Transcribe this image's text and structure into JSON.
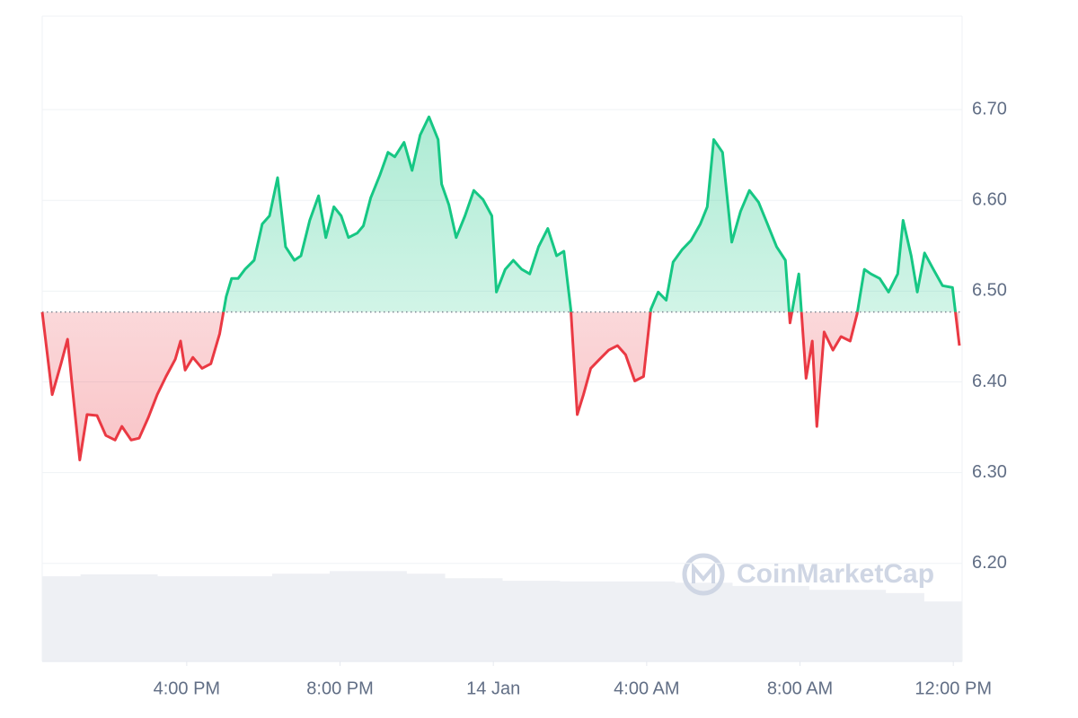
{
  "chart_data": {
    "type": "line",
    "x": [
      12.23,
      12.49,
      12.72,
      12.89,
      13.01,
      13.21,
      13.4,
      13.66,
      13.89,
      14.13,
      14.31,
      14.55,
      14.76,
      15.0,
      15.23,
      15.46,
      15.7,
      15.84,
      15.96,
      16.16,
      16.4,
      16.63,
      16.86,
      17.03,
      17.17,
      17.34,
      17.52,
      17.76,
      17.97,
      18.16,
      18.37,
      18.58,
      18.81,
      18.98,
      19.21,
      19.44,
      19.63,
      19.84,
      20.03,
      20.22,
      20.45,
      20.61,
      20.8,
      21.04,
      21.25,
      21.43,
      21.67,
      21.88,
      22.09,
      22.32,
      22.56,
      22.65,
      22.84,
      23.03,
      23.26,
      23.49,
      23.73,
      23.96,
      24.08,
      24.31,
      24.52,
      24.74,
      24.95,
      25.18,
      25.42,
      25.65,
      25.84,
      26.02,
      26.19,
      26.35,
      26.54,
      26.77,
      27.01,
      27.24,
      27.45,
      27.69,
      27.92,
      28.11,
      28.3,
      28.51,
      28.69,
      28.93,
      29.16,
      29.4,
      29.58,
      29.75,
      29.98,
      30.22,
      30.45,
      30.68,
      30.92,
      31.15,
      31.39,
      31.62,
      31.74,
      31.97,
      32.16,
      32.32,
      32.44,
      32.63,
      32.86,
      33.07,
      33.31,
      33.49,
      33.68,
      33.85,
      34.08,
      34.31,
      34.55,
      34.69,
      34.9,
      35.06,
      35.25,
      35.48,
      35.72,
      35.98,
      36.16
    ],
    "values": [
      6.477,
      6.386,
      6.42,
      6.447,
      6.396,
      6.314,
      6.364,
      6.363,
      6.341,
      6.336,
      6.351,
      6.336,
      6.338,
      6.361,
      6.386,
      6.406,
      6.425,
      6.445,
      6.413,
      6.427,
      6.415,
      6.42,
      6.453,
      6.494,
      6.514,
      6.514,
      6.524,
      6.534,
      6.574,
      6.583,
      6.625,
      6.549,
      6.534,
      6.539,
      6.578,
      6.605,
      6.559,
      6.593,
      6.583,
      6.559,
      6.564,
      6.572,
      6.603,
      6.628,
      6.653,
      6.648,
      6.664,
      6.633,
      6.672,
      6.692,
      6.667,
      6.618,
      6.595,
      6.559,
      6.583,
      6.611,
      6.601,
      6.583,
      6.499,
      6.524,
      6.534,
      6.524,
      6.519,
      6.549,
      6.569,
      6.539,
      6.544,
      6.48,
      6.364,
      6.386,
      6.415,
      6.425,
      6.435,
      6.44,
      6.43,
      6.401,
      6.406,
      6.48,
      6.499,
      6.49,
      6.532,
      6.546,
      6.556,
      6.574,
      6.593,
      6.667,
      6.653,
      6.554,
      6.588,
      6.611,
      6.598,
      6.574,
      6.549,
      6.534,
      6.465,
      6.519,
      6.404,
      6.445,
      6.351,
      6.455,
      6.435,
      6.45,
      6.445,
      6.475,
      6.524,
      6.519,
      6.514,
      6.499,
      6.519,
      6.578,
      6.539,
      6.499,
      6.542,
      6.524,
      6.506,
      6.504,
      6.44
    ],
    "reference_line": 6.477,
    "up_color": "#16c784",
    "down_color": "#ea3943",
    "xlim": [
      12.23,
      36.23
    ],
    "xticks": [
      {
        "value": 16,
        "label": "4:00 PM"
      },
      {
        "value": 20,
        "label": "8:00 PM"
      },
      {
        "value": 24,
        "label": "14 Jan"
      },
      {
        "value": 28,
        "label": "4:00 AM"
      },
      {
        "value": 32,
        "label": "8:00 AM"
      },
      {
        "value": 36,
        "label": "12:00 PM"
      }
    ],
    "ylim": [
      6.092,
      6.803
    ],
    "yticks": [
      {
        "value": 6.2,
        "label": "6.20"
      },
      {
        "value": 6.3,
        "label": "6.30"
      },
      {
        "value": 6.4,
        "label": "6.40"
      },
      {
        "value": 6.5,
        "label": "6.50"
      },
      {
        "value": 6.6,
        "label": "6.60"
      },
      {
        "value": 6.7,
        "label": "6.70"
      }
    ],
    "grid": true,
    "volume": {
      "color": "#eef0f4",
      "y2lim": [
        0,
        100
      ],
      "values": [
        13.2,
        13.2,
        13.5,
        13.5,
        13.5,
        13.5,
        13.2,
        13.2,
        13.2,
        13.2,
        13.2,
        13.2,
        13.6,
        13.6,
        13.6,
        14.0,
        14.0,
        14.0,
        14.0,
        13.6,
        13.6,
        12.9,
        12.9,
        12.9,
        12.5,
        12.5,
        12.5,
        12.4,
        12.4,
        12.4,
        12.4,
        12.4,
        12.4,
        12.2,
        12.2,
        12.2,
        11.7,
        11.7,
        11.7,
        11.7,
        11.1,
        11.1,
        11.1,
        11.1,
        10.6,
        10.6,
        9.3,
        9.3
      ]
    },
    "watermark": "CoinMarketCap"
  }
}
